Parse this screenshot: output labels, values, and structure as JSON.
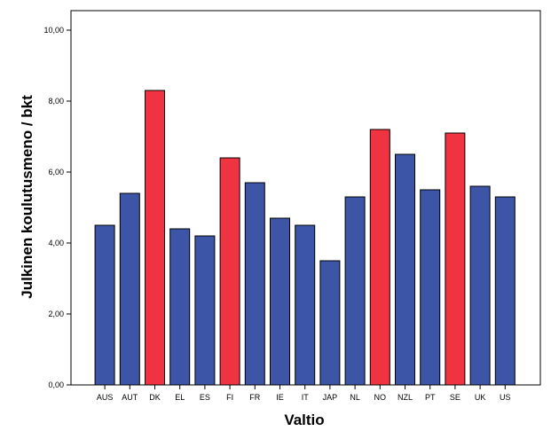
{
  "chart_data": {
    "type": "bar",
    "xlabel": "Valtio",
    "ylabel": "Julkinen koulutusmeno / bkt",
    "categories": [
      "AUS",
      "AUT",
      "DK",
      "EL",
      "ES",
      "FI",
      "FR",
      "IE",
      "IT",
      "JAP",
      "NL",
      "NO",
      "NZL",
      "PT",
      "SE",
      "UK",
      "US"
    ],
    "values": [
      4.5,
      5.4,
      8.3,
      4.4,
      4.2,
      6.4,
      5.7,
      4.7,
      4.5,
      3.5,
      5.3,
      7.2,
      6.5,
      5.5,
      7.1,
      5.6,
      5.3
    ],
    "highlight": [
      false,
      false,
      true,
      false,
      false,
      true,
      false,
      false,
      false,
      false,
      false,
      true,
      false,
      false,
      true,
      false,
      false
    ],
    "ylim": [
      0,
      10
    ],
    "yticks": [
      0,
      2,
      4,
      6,
      8,
      10
    ],
    "ytick_labels": [
      "0,00",
      "2,00",
      "4,00",
      "6,00",
      "8,00",
      "10,00"
    ],
    "grid": false,
    "legend": "none",
    "colors": {
      "default": "#3d55a6",
      "highlight": "#ef3340",
      "edge": "#000000"
    }
  }
}
